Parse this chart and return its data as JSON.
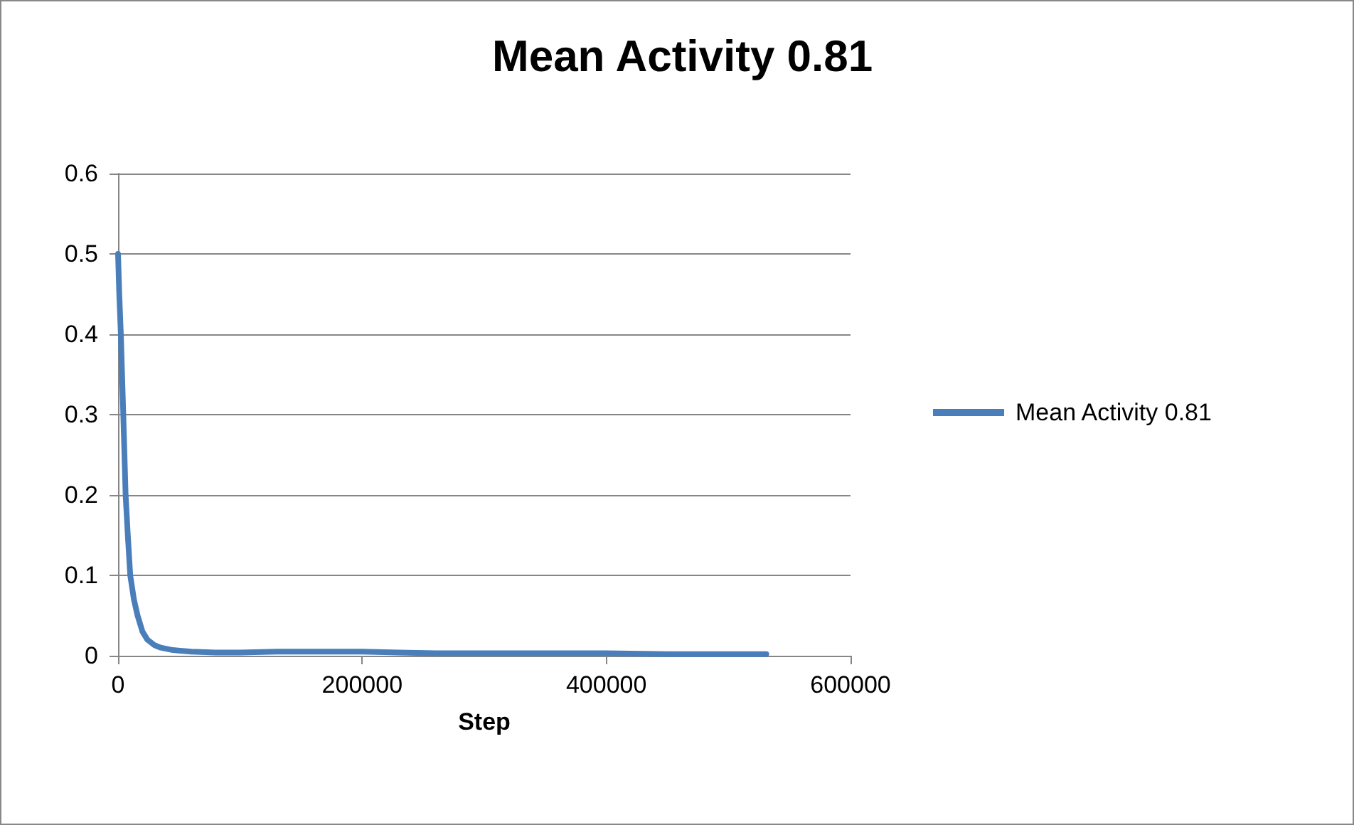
{
  "chart_data": {
    "type": "line",
    "title": "Mean Activity 0.81",
    "xlabel": "Step",
    "x": [
      0,
      1000,
      2300,
      4300,
      6200,
      8000,
      10000,
      13000,
      16000,
      20000,
      24000,
      30000,
      35000,
      45000,
      60000,
      80000,
      100000,
      130000,
      160000,
      200000,
      230000,
      260000,
      300000,
      350000,
      400000,
      450000,
      500000,
      531000
    ],
    "series": [
      {
        "name": "Mean Activity 0.81",
        "color": "#4a7ebb",
        "values": [
          0.5,
          0.45,
          0.4,
          0.3,
          0.2,
          0.15,
          0.1,
          0.07,
          0.05,
          0.03,
          0.02,
          0.013,
          0.01,
          0.007,
          0.005,
          0.004,
          0.004,
          0.005,
          0.005,
          0.005,
          0.004,
          0.003,
          0.003,
          0.003,
          0.003,
          0.002,
          0.002,
          0.002
        ]
      }
    ],
    "xlim": [
      0,
      600000
    ],
    "xticks": [
      0,
      200000,
      400000,
      600000
    ],
    "ylim": [
      0,
      0.6
    ],
    "yticks": [
      0,
      0.1,
      0.2,
      0.3,
      0.4,
      0.5,
      0.6
    ],
    "grid": "y",
    "legend": "right",
    "marker": "none",
    "line_style": "solid"
  }
}
